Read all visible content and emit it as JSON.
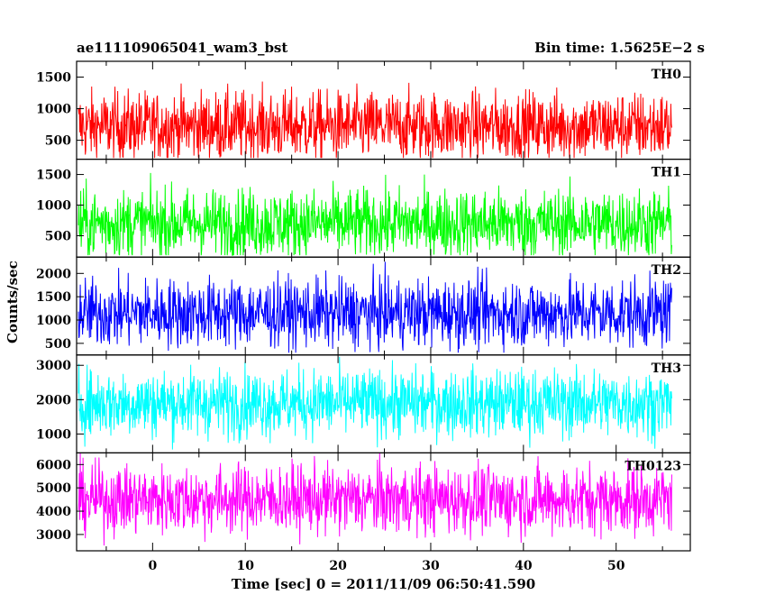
{
  "header": {
    "title": "ae111109065041_wam3_bst",
    "bin_time": "Bin time: 1.5625E−2 s"
  },
  "chart_data": {
    "type": "line",
    "xlabel": "Time [sec] 0 = 2011/11/09 06:50:41.590",
    "ylabel": "Counts/sec",
    "xlim": [
      -8.2,
      58
    ],
    "x_ticks": [
      0,
      10,
      20,
      30,
      40,
      50
    ],
    "data_range": [
      -8,
      56
    ],
    "panels": [
      {
        "name": "TH0",
        "color": "#ff0000",
        "ylim": [
          200,
          1750
        ],
        "yticks": [
          500,
          1000,
          1500
        ],
        "mean": 720,
        "min": 220,
        "max": 1750
      },
      {
        "name": "TH1",
        "color": "#00ff00",
        "ylim": [
          150,
          1750
        ],
        "yticks": [
          500,
          1000,
          1500
        ],
        "mean": 700,
        "min": 180,
        "max": 1750
      },
      {
        "name": "TH2",
        "color": "#0000ff",
        "ylim": [
          250,
          2350
        ],
        "yticks": [
          500,
          1000,
          1500,
          2000
        ],
        "mean": 1150,
        "min": 300,
        "max": 2350
      },
      {
        "name": "TH3",
        "color": "#00ffff",
        "ylim": [
          450,
          3300
        ],
        "yticks": [
          1000,
          2000,
          3000
        ],
        "mean": 1900,
        "min": 550,
        "max": 3300
      },
      {
        "name": "TH0123",
        "color": "#ff00ff",
        "ylim": [
          2300,
          6500
        ],
        "yticks": [
          3000,
          4000,
          5000,
          6000
        ],
        "mean": 4500,
        "min": 2400,
        "max": 6500
      }
    ]
  }
}
